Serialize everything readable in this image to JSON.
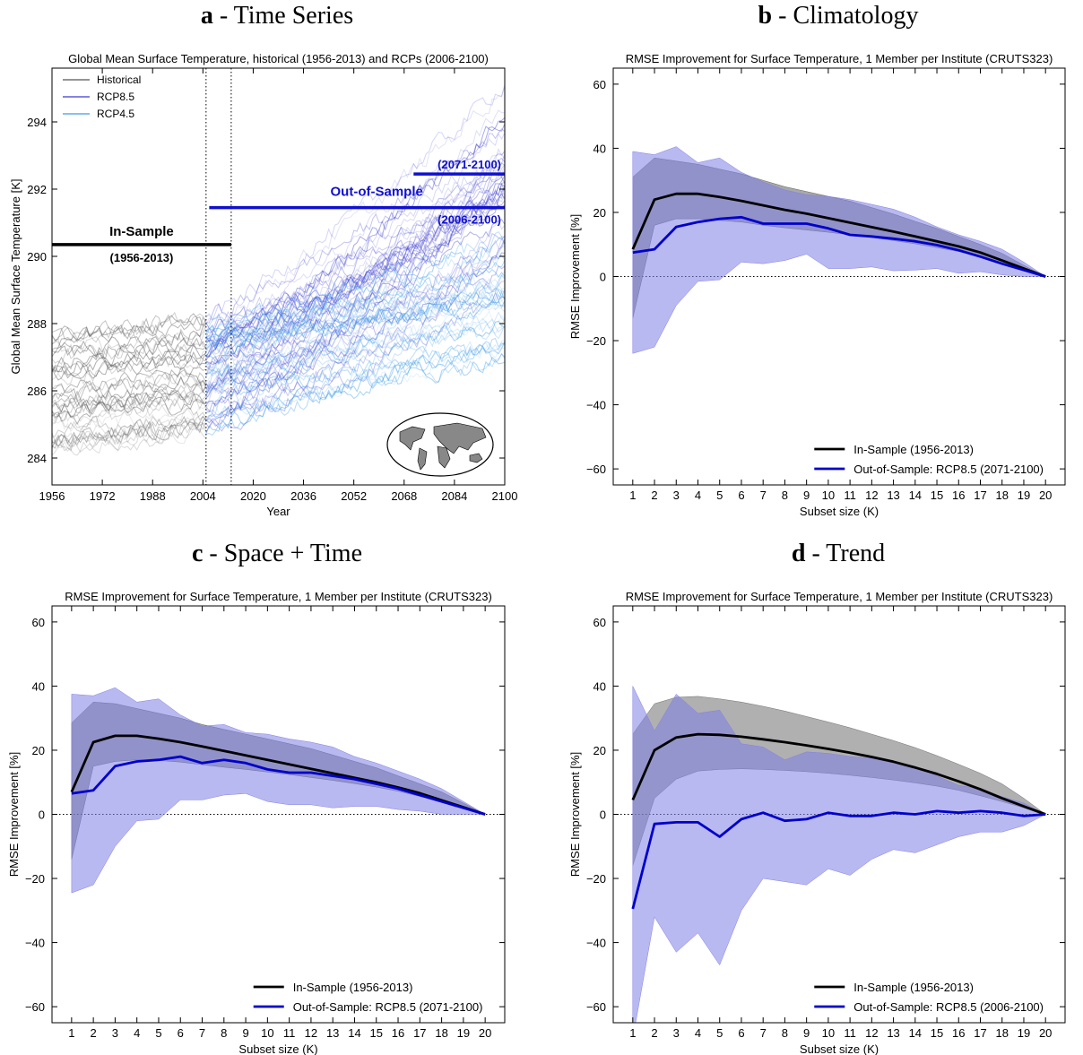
{
  "panels": {
    "a": {
      "letter": "a",
      "heading": " - Time Series"
    },
    "b": {
      "letter": "b",
      "heading": " - Climatology"
    },
    "c": {
      "letter": "c",
      "heading": " - Space + Time"
    },
    "d": {
      "letter": "d",
      "heading": " - Trend"
    }
  },
  "chart_data": [
    {
      "id": "a",
      "type": "line",
      "title": "Global Mean Surface Temperature, historical (1956-2013) and RCPs (2006-2100)",
      "xlabel": "Year",
      "ylabel": "Global Mean Surface Temperature [K]",
      "xlim": [
        1956,
        2100
      ],
      "ylim": [
        283.2,
        295.6
      ],
      "xticks": [
        1956,
        1972,
        1988,
        2004,
        2020,
        2036,
        2052,
        2068,
        2084,
        2100
      ],
      "yticks": [
        284,
        286,
        288,
        290,
        292,
        294
      ],
      "vlines": [
        2005,
        2013
      ],
      "legend": {
        "position": "top-left",
        "entries": [
          {
            "name": "Historical",
            "color": "#555555"
          },
          {
            "name": "RCP8.5",
            "color": "#3b3bd0"
          },
          {
            "name": "RCP4.5",
            "color": "#3a9ae8"
          }
        ]
      },
      "series": [
        {
          "name": "Historical",
          "x_range": [
            1956,
            2005
          ],
          "start_range": [
            284.2,
            287.7
          ],
          "slope": 0.011,
          "count": 40,
          "color": "#555555"
        },
        {
          "name": "RCP8.5",
          "x_range": [
            2005,
            2100
          ],
          "start_range": [
            284.9,
            288.2
          ],
          "slope": 0.041,
          "count": 40,
          "color": "#3b3bd0"
        },
        {
          "name": "RCP4.5",
          "x_range": [
            2005,
            2100
          ],
          "start_range": [
            284.8,
            288.0
          ],
          "slope": 0.02,
          "count": 35,
          "color": "#3a9ae8"
        }
      ],
      "annotations": [
        {
          "label": "In-Sample",
          "sublabel": "(1956-2013)",
          "x": [
            1956,
            2013
          ],
          "y": 290.35,
          "color": "#000000"
        },
        {
          "label": "Out-of-Sample",
          "sublabel": "(2006-2100)",
          "x": [
            2006,
            2100
          ],
          "y": 291.45,
          "color": "#1010d0"
        },
        {
          "label": "(2071-2100)",
          "x": [
            2071,
            2100
          ],
          "y": 292.45,
          "color": "#1010d0"
        }
      ]
    },
    {
      "id": "b",
      "type": "area",
      "title": "RMSE Improvement for Surface Temperature, 1 Member per Institute (CRUTS323)",
      "xlabel": "Subset size (K)",
      "ylabel": "RMSE Improvement [%]",
      "xlim": [
        0.1,
        20.9
      ],
      "ylim": [
        -65,
        65
      ],
      "categories": [
        1,
        2,
        3,
        4,
        5,
        6,
        7,
        8,
        9,
        10,
        11,
        12,
        13,
        14,
        15,
        16,
        17,
        18,
        19,
        20
      ],
      "yticks": [
        -60,
        -40,
        -20,
        0,
        20,
        40,
        60
      ],
      "legend": {
        "position": "bottom-right"
      },
      "series": [
        {
          "name": "In-Sample (1956-2013)",
          "color": "#000000",
          "values": [
            8.5,
            24,
            25.8,
            25.8,
            24.8,
            23.6,
            22.2,
            20.8,
            19.6,
            18.2,
            16.8,
            15.4,
            14,
            12.5,
            11,
            9.4,
            7.5,
            5,
            2.5,
            0
          ],
          "band_lower": [
            -13,
            16,
            18,
            18,
            17.5,
            17,
            16,
            15.2,
            14.5,
            13.8,
            13,
            12.2,
            11.2,
            10.2,
            9,
            7.8,
            6.2,
            4.2,
            2,
            0
          ],
          "band_upper": [
            31,
            37,
            36,
            35,
            33.5,
            32,
            30,
            28,
            26.5,
            25,
            23.5,
            21.5,
            19.5,
            17.2,
            15,
            12.5,
            10,
            7.2,
            3.5,
            0
          ],
          "band_color": "#606060"
        },
        {
          "name": "Out-of-Sample: RCP8.5 (2071-2100)",
          "color": "#0000cc",
          "values": [
            7.5,
            8.5,
            15.5,
            17,
            18,
            18.5,
            16.5,
            16.5,
            16.5,
            15,
            13,
            12.5,
            11.8,
            11,
            9.8,
            8.2,
            6.2,
            4,
            2,
            0
          ],
          "band_lower": [
            -24,
            -22,
            -9,
            -1.5,
            -1,
            4.5,
            4,
            5,
            7,
            2.5,
            2.5,
            3,
            1.8,
            2,
            2.5,
            1,
            1.5,
            0.5,
            0,
            0
          ],
          "band_upper": [
            39,
            38,
            40.5,
            35.5,
            37,
            32.5,
            29.5,
            27,
            25.5,
            25,
            24,
            22.5,
            21,
            18.5,
            15.5,
            13,
            11,
            8.5,
            4.5,
            0
          ],
          "band_color": "#8080e6"
        }
      ]
    },
    {
      "id": "c",
      "type": "area",
      "title": "RMSE Improvement for Surface Temperature, 1 Member per Institute (CRUTS323)",
      "xlabel": "Subset size (K)",
      "ylabel": "RMSE Improvement [%]",
      "xlim": [
        0.1,
        20.9
      ],
      "ylim": [
        -65,
        65
      ],
      "categories": [
        1,
        2,
        3,
        4,
        5,
        6,
        7,
        8,
        9,
        10,
        11,
        12,
        13,
        14,
        15,
        16,
        17,
        18,
        19,
        20
      ],
      "yticks": [
        -60,
        -40,
        -20,
        0,
        20,
        40,
        60
      ],
      "legend": {
        "position": "bottom-right"
      },
      "series": [
        {
          "name": "In-Sample (1956-2013)",
          "color": "#000000",
          "values": [
            7,
            22.5,
            24.5,
            24.5,
            23.6,
            22.5,
            21.2,
            19.8,
            18.4,
            17,
            15.6,
            14.2,
            12.8,
            11.4,
            10,
            8.4,
            6.6,
            4.4,
            2.2,
            0
          ],
          "band_lower": [
            -14,
            15,
            16.5,
            17,
            16.8,
            16.3,
            15.5,
            14.7,
            14,
            13.2,
            12.4,
            11.5,
            10.6,
            9.6,
            8.5,
            7.2,
            5.6,
            3.8,
            1.8,
            0
          ],
          "band_upper": [
            28.5,
            35,
            34.5,
            33,
            31.5,
            30,
            28,
            26.5,
            25,
            23.5,
            22,
            20.5,
            18.5,
            16.5,
            14.5,
            12,
            9.5,
            7,
            3.5,
            0
          ],
          "band_color": "#606060"
        },
        {
          "name": "Out-of-Sample: RCP8.5 (2071-2100)",
          "color": "#0000cc",
          "values": [
            6.5,
            7.5,
            15,
            16.5,
            17,
            18,
            16,
            17,
            16,
            14,
            13,
            13,
            12,
            11,
            9.5,
            8,
            6,
            4,
            2,
            0
          ],
          "band_lower": [
            -24.5,
            -22,
            -10,
            -2,
            -1.5,
            4.5,
            4.5,
            6,
            6.5,
            4,
            3,
            3,
            2,
            2.5,
            2.5,
            1.5,
            1,
            0,
            0,
            0
          ],
          "band_upper": [
            37.5,
            37,
            39.5,
            35,
            36,
            31,
            27.5,
            28,
            25.5,
            25,
            23.5,
            22.5,
            21,
            18,
            16,
            13.5,
            11,
            8,
            4,
            0
          ],
          "band_color": "#8080e6"
        }
      ]
    },
    {
      "id": "d",
      "type": "area",
      "title": "RMSE Improvement for Surface Temperature, 1 Member per Institute (CRUTS323)",
      "xlabel": "Subset size (K)",
      "ylabel": "RMSE Improvement [%]",
      "xlim": [
        0.1,
        20.9
      ],
      "ylim": [
        -65,
        65
      ],
      "categories": [
        1,
        2,
        3,
        4,
        5,
        6,
        7,
        8,
        9,
        10,
        11,
        12,
        13,
        14,
        15,
        16,
        17,
        18,
        19,
        20
      ],
      "yticks": [
        -60,
        -40,
        -20,
        0,
        20,
        40,
        60
      ],
      "legend": {
        "position": "bottom-right"
      },
      "series": [
        {
          "name": "In-Sample (1956-2013)",
          "color": "#000000",
          "values": [
            4.5,
            20,
            24,
            25,
            24.8,
            24.2,
            23.4,
            22.5,
            21.5,
            20.4,
            19.2,
            17.9,
            16.4,
            14.6,
            12.6,
            10.3,
            7.8,
            5,
            2.5,
            0
          ],
          "band_lower": [
            -16,
            5,
            11,
            13.5,
            14,
            14.2,
            14,
            13.7,
            13.3,
            12.8,
            12.2,
            11.5,
            10.7,
            9.8,
            8.8,
            7.5,
            5.8,
            4,
            2,
            0
          ],
          "band_upper": [
            25,
            34.5,
            36.5,
            36.8,
            36,
            35,
            33.7,
            32.2,
            30.5,
            28.8,
            27,
            25,
            23,
            20.8,
            18.3,
            15.6,
            12.8,
            9.5,
            5,
            0
          ],
          "band_color": "#707070"
        },
        {
          "name": "Out-of-Sample: RCP8.5 (2006-2100)",
          "color": "#0000cc",
          "values": [
            -29.5,
            -3,
            -2.5,
            -2.5,
            -7,
            -1.5,
            0.5,
            -2,
            -1.5,
            0.5,
            -0.5,
            -0.5,
            0.5,
            0,
            1,
            0.5,
            1,
            0.5,
            -0.5,
            0
          ],
          "band_lower": [
            -70,
            -32,
            -43,
            -37,
            -47,
            -30,
            -20,
            -21,
            -22,
            -17,
            -19,
            -14,
            -11,
            -12,
            -9.5,
            -7,
            -5.5,
            -5.5,
            -3.5,
            0
          ],
          "band_upper": [
            40,
            26,
            37.5,
            31.5,
            32.5,
            22,
            21,
            17,
            19.5,
            19,
            18,
            17.5,
            16,
            15,
            12,
            9,
            8,
            5.5,
            3.5,
            0
          ],
          "band_color": "#8080e6"
        }
      ]
    }
  ]
}
